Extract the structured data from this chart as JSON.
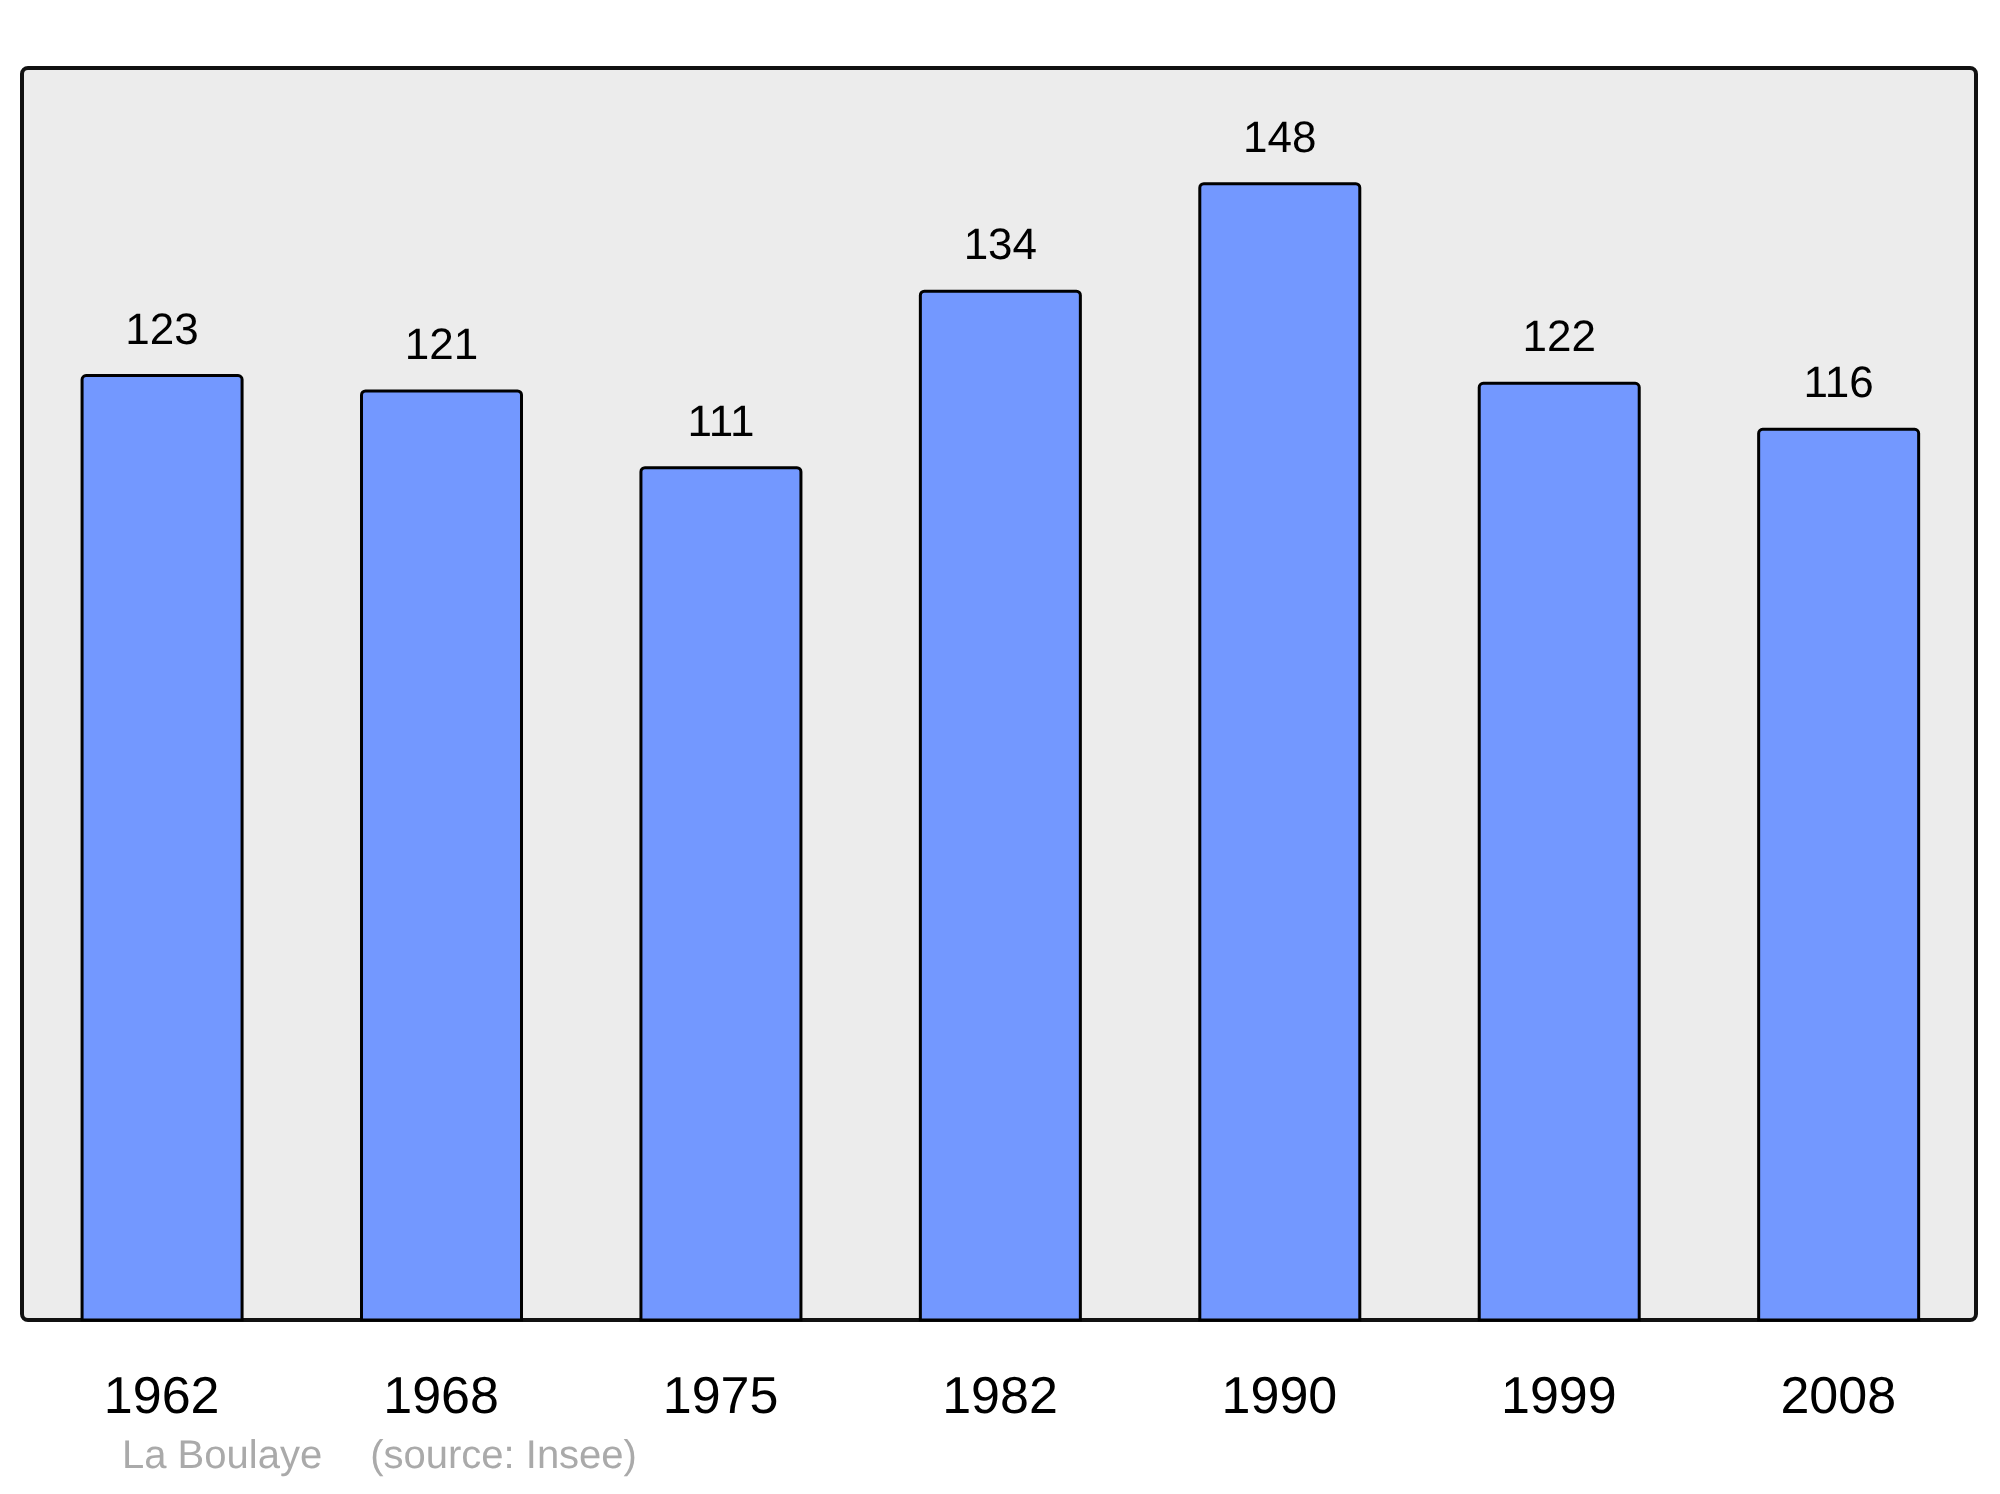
{
  "chart_data": {
    "type": "bar",
    "categories": [
      "1962",
      "1968",
      "1975",
      "1982",
      "1990",
      "1999",
      "2008"
    ],
    "values": [
      123,
      121,
      111,
      134,
      148,
      122,
      116
    ],
    "color": "#7398ff",
    "data_labels": true,
    "annotations": [
      "La Boulaye",
      "(source: Insee)"
    ]
  }
}
